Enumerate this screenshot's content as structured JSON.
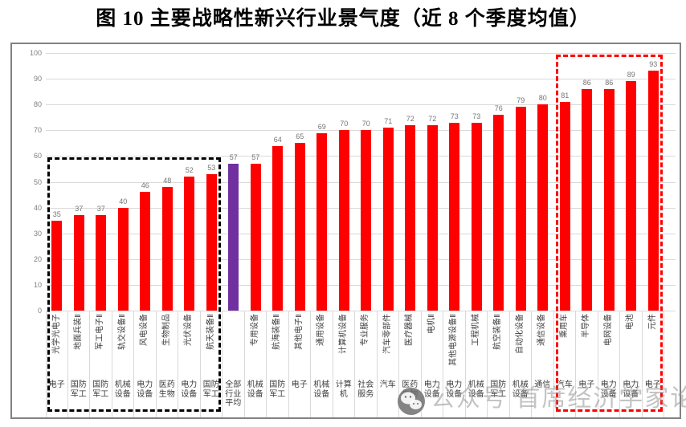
{
  "page": {
    "title": "图 10 主要战略性新兴行业景气度（近 8 个季度均值）"
  },
  "watermark": {
    "icon": "wechat-icon",
    "text": "公众号 首席经济学家论坛"
  },
  "chart_data": {
    "type": "bar",
    "title": "图 10 主要战略性新兴行业景气度（近 8 个季度均值）",
    "xlabel": "",
    "ylabel": "",
    "ylim": [
      0,
      100
    ],
    "ytick_interval": 10,
    "grid": true,
    "legend": false,
    "bar_color": "#FF0000",
    "average_bar_color": "#7030A0",
    "gridline_color": "#d9d9d9",
    "categories": [
      "光学光电子",
      "地面兵装Ⅱ",
      "军工电子Ⅱ",
      "轨交设备Ⅱ",
      "风电设备",
      "生物制品",
      "光伏设备",
      "航天装备Ⅱ",
      "",
      "专用设备",
      "航海装备Ⅱ",
      "其他电子Ⅱ",
      "通用设备",
      "计算机设备",
      "专业服务",
      "汽车零部件",
      "医疗器械",
      "电机Ⅱ",
      "其他电源设备Ⅱ",
      "工程机械",
      "航空装备Ⅱ",
      "自动化设备",
      "通信设备",
      "乘用车",
      "半导体",
      "电网设备",
      "电池",
      "元件"
    ],
    "groups": [
      "电子",
      "国防军工",
      "国防军工",
      "机械设备",
      "电力设备",
      "医药生物",
      "电力设备",
      "国防军工",
      "全部行业平均",
      "机械设备",
      "国防军工",
      "电子",
      "机械设备",
      "计算机",
      "社会服务",
      "汽车",
      "医药生物",
      "电力设备",
      "电力设备",
      "机械设备",
      "国防军工",
      "机械设备",
      "通信",
      "汽车",
      "电子",
      "电力设备",
      "电力设备",
      "电子"
    ],
    "values": [
      35,
      37,
      37,
      40,
      46,
      48,
      52,
      53,
      57,
      57,
      64,
      65,
      69,
      70,
      70,
      71,
      72,
      72,
      73,
      73,
      76,
      79,
      80,
      81,
      86,
      86,
      89,
      93
    ],
    "highlight_average_index": 8,
    "annotation_boxes": [
      {
        "name": "black-dashed-box",
        "color": "#000000",
        "from_index": 0,
        "to_index": 7,
        "top_value": 60
      },
      {
        "name": "red-dashed-box",
        "color": "#FF0000",
        "from_index": 23,
        "to_index": 27,
        "top_value": 100
      }
    ]
  }
}
